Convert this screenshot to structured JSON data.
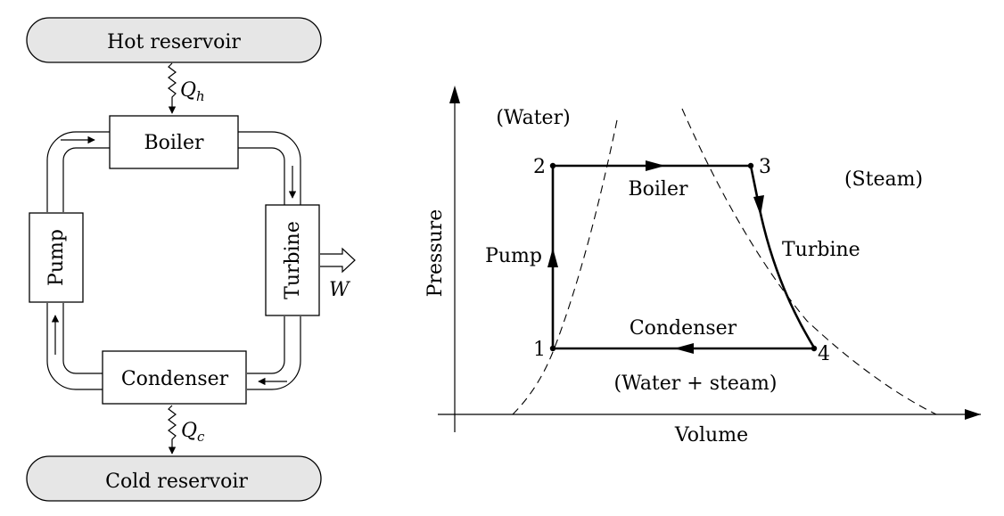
{
  "reservoirs": {
    "hot": "Hot reservoir",
    "cold": "Cold reservoir"
  },
  "components": {
    "boiler": "Boiler",
    "turbine": "Turbine",
    "condenser": "Condenser",
    "pump": "Pump"
  },
  "heat_flows": {
    "hot": {
      "symbol": "Q",
      "subscript": "h"
    },
    "cold": {
      "symbol": "Q",
      "subscript": "c"
    }
  },
  "work": "W",
  "pv_diagram": {
    "axes": {
      "x": "Volume",
      "y": "Pressure"
    },
    "regions": {
      "water": "(Water)",
      "steam": "(Steam)",
      "mixture": "(Water + steam)"
    },
    "states": [
      "1",
      "2",
      "3",
      "4"
    ],
    "processes": {
      "boiler": "Boiler",
      "turbine": "Turbine",
      "condenser": "Condenser",
      "pump": "Pump"
    }
  },
  "colors": {
    "reservoir_fill": "#e6e6e6",
    "line": "#000000"
  }
}
